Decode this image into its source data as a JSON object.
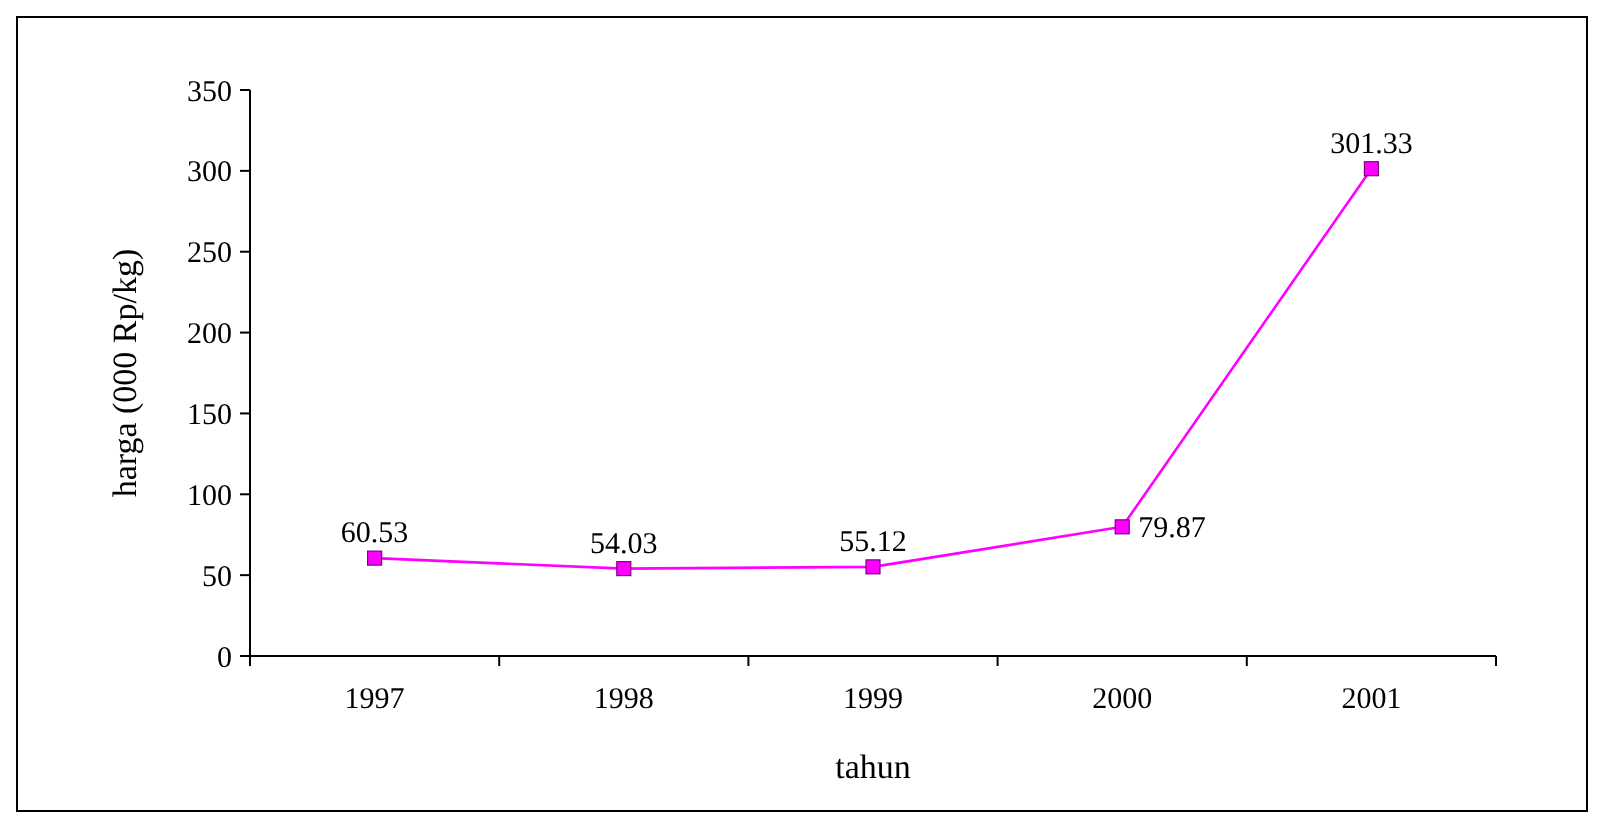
{
  "chart_data": {
    "type": "line",
    "xlabel": "tahun",
    "ylabel": "harga (000 Rp/kg)",
    "categories": [
      "1997",
      "1998",
      "1999",
      "2000",
      "2001"
    ],
    "series": [
      {
        "color": "#ff00ff",
        "values": [
          60.53,
          54.03,
          55.12,
          79.87,
          301.33
        ]
      }
    ],
    "ylim": [
      0,
      350
    ],
    "yticks": [
      0,
      50,
      100,
      150,
      200,
      250,
      300,
      350
    ],
    "data_labels": true,
    "marker": "square"
  }
}
